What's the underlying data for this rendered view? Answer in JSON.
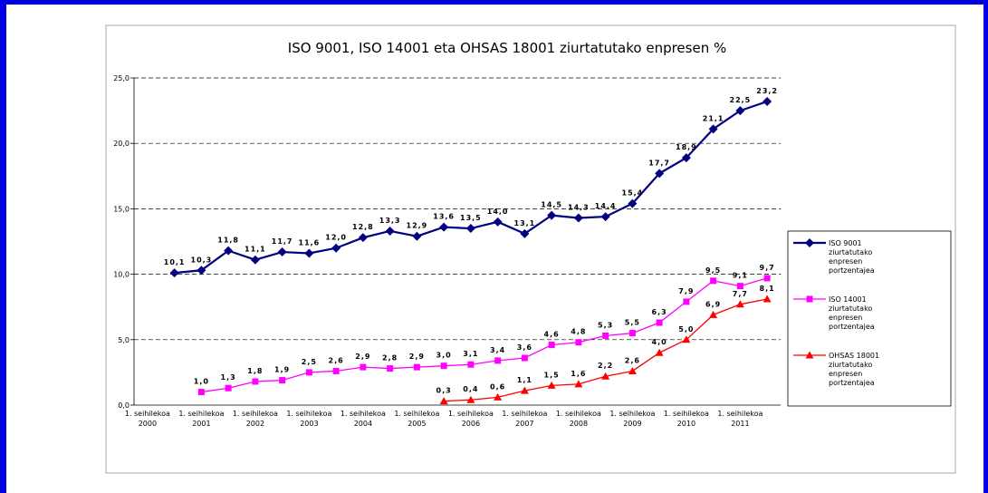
{
  "chart_data": {
    "type": "line",
    "title": "ISO 9001, ISO 14001 eta OHSAS 18001 ziurtatutako enpresen %",
    "categories": [
      "1. seihilekoa 2000",
      null,
      "1. seihilekoa 2001",
      null,
      "1. seihilekoa 2002",
      null,
      "1. seihilekoa 2003",
      null,
      "1. seihilekoa 2004",
      null,
      "1. seihilekoa 2005",
      null,
      "1. seihilekoa 2006",
      null,
      "1. seihilekoa 2007",
      null,
      "1. seihilekoa 2008",
      null,
      "1. seihilekoa 2009",
      null,
      "1. seihilekoa 2010",
      null,
      "1. seihilekoa 2011",
      null
    ],
    "series": [
      {
        "name": "ISO 9001 ziurtatutako enpresen portzentajea",
        "color": "#000080",
        "marker": "diamond",
        "values": [
          null,
          10.1,
          10.3,
          11.8,
          11.1,
          11.7,
          11.6,
          12.0,
          12.8,
          13.3,
          12.9,
          13.6,
          13.5,
          14.0,
          13.1,
          14.5,
          14.3,
          14.4,
          15.4,
          17.7,
          18.9,
          21.1,
          22.5,
          23.2
        ],
        "value_labels": [
          null,
          "10,1",
          "10,3",
          "11,8",
          "11,1",
          "11,7",
          "11,6",
          "12,0",
          "12,8",
          "13,3",
          "12,9",
          "13,6",
          "13,5",
          "14,0",
          "13,1",
          "14,5",
          "14,3",
          "14,4",
          "15,4",
          "17,7",
          "18,9",
          "21,1",
          "22,5",
          "23,2"
        ]
      },
      {
        "name": "ISO 14001 ziurtatutako enpresen portzentajea",
        "color": "#ff00ff",
        "marker": "square",
        "values": [
          null,
          null,
          1.0,
          1.3,
          1.8,
          1.9,
          2.5,
          2.6,
          2.9,
          2.8,
          2.9,
          3.0,
          3.1,
          3.4,
          3.6,
          4.6,
          4.8,
          5.3,
          5.5,
          6.3,
          7.9,
          9.5,
          9.1,
          9.7
        ],
        "value_labels": [
          null,
          null,
          "1,0",
          "1,3",
          "1,8",
          "1,9",
          "2,5",
          "2,6",
          "2,9",
          "2,8",
          "2,9",
          "3,0",
          "3,1",
          "3,4",
          "3,6",
          "4,6",
          "4,8",
          "5,3",
          "5,5",
          "6,3",
          "7,9",
          "9,5",
          "9,1",
          "9,7"
        ]
      },
      {
        "name": "OHSAS 18001 ziurtatutako enpresen portzentajea",
        "color": "#ff0000",
        "marker": "triangle",
        "values": [
          null,
          null,
          null,
          null,
          null,
          null,
          null,
          null,
          null,
          null,
          null,
          0.3,
          0.4,
          0.6,
          1.1,
          1.5,
          1.6,
          2.2,
          2.6,
          4.0,
          5.0,
          6.9,
          7.7,
          8.1
        ],
        "value_labels": [
          null,
          null,
          null,
          null,
          null,
          null,
          null,
          null,
          null,
          null,
          null,
          "0,3",
          "0,4",
          "0,6",
          "1,1",
          "1,5",
          "1,6",
          "2,2",
          "2,6",
          "4,0",
          "5,0",
          "6,9",
          "7,7",
          "8,1"
        ]
      }
    ],
    "ylim": [
      0,
      25
    ],
    "yticks": [
      {
        "value": 0,
        "label": "0,0"
      },
      {
        "value": 5,
        "label": "5,0"
      },
      {
        "value": 10,
        "label": "10,0"
      },
      {
        "value": 15,
        "label": "15,0"
      },
      {
        "value": 20,
        "label": "20,0"
      },
      {
        "value": 25,
        "label": "25,0"
      }
    ],
    "grid": true,
    "legend": "right"
  }
}
